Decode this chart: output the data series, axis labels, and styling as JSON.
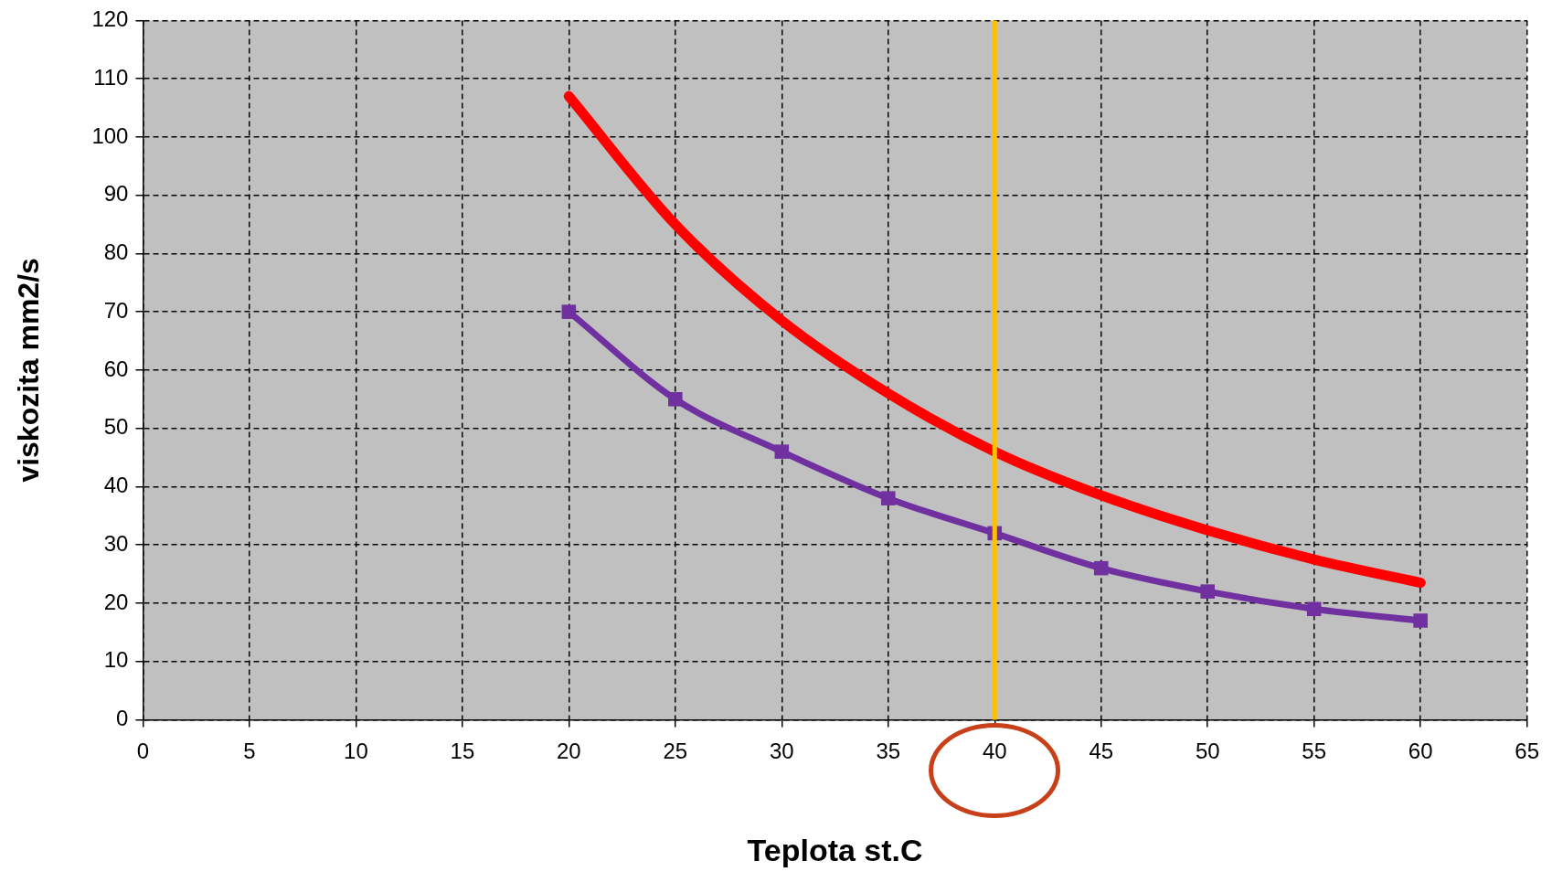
{
  "chart_data": {
    "type": "line",
    "xlabel": "Teplota st.C",
    "ylabel": "viskozita mm2/s",
    "x": [
      20,
      25,
      30,
      35,
      40,
      45,
      50,
      55,
      60
    ],
    "series": [
      {
        "color": "#ff0000",
        "marker": "diamond",
        "values": [
          107,
          85,
          68.5,
          56,
          46,
          38.5,
          32.5,
          27.5,
          23.5
        ]
      },
      {
        "color": "#7030a0",
        "marker": "square",
        "values": [
          70,
          55,
          46,
          38,
          32,
          26,
          22,
          19,
          17
        ]
      }
    ],
    "xlim": [
      0,
      65
    ],
    "xticks": [
      0,
      5,
      10,
      15,
      20,
      25,
      30,
      35,
      40,
      45,
      50,
      55,
      60,
      65
    ],
    "ylim": [
      0,
      120
    ],
    "yticks": [
      0,
      10,
      20,
      30,
      40,
      50,
      60,
      70,
      80,
      90,
      100,
      110,
      120
    ],
    "ref_lines": [
      {
        "axis": "x",
        "value": 40,
        "color": "#ffc000"
      }
    ],
    "grid": true,
    "legend": false
  }
}
